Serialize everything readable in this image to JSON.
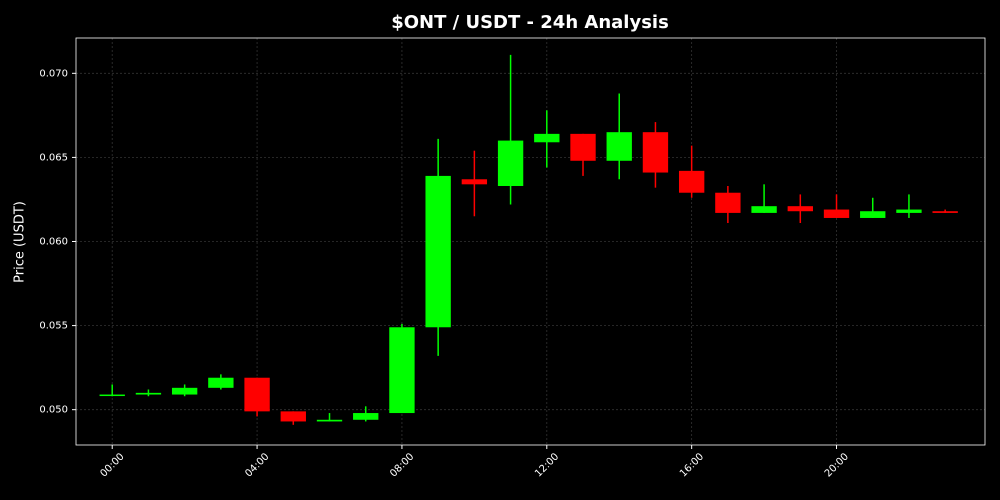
{
  "chart_data": {
    "type": "candlestick",
    "title": "$ONT / USDT - 24h Analysis",
    "y_label": "Price (USDT)",
    "categories": [
      "00:00",
      null,
      null,
      null,
      "04:00",
      null,
      null,
      null,
      "08:00",
      null,
      null,
      null,
      "12:00",
      null,
      null,
      null,
      "16:00",
      null,
      null,
      null,
      "20:00",
      null,
      null,
      null
    ],
    "open": [
      0.05085,
      0.0509,
      0.0509,
      0.0513,
      0.0519,
      0.0499,
      0.0493,
      0.0494,
      0.0498,
      0.0549,
      0.0637,
      0.0633,
      0.0659,
      0.0664,
      0.0648,
      0.0665,
      0.0642,
      0.0629,
      0.0617,
      0.0621,
      0.0619,
      0.0614,
      0.0617,
      0.0618
    ],
    "high": [
      0.0515,
      0.0512,
      0.0515,
      0.0521,
      0.0519,
      0.0499,
      0.0498,
      0.0502,
      0.0551,
      0.0661,
      0.0654,
      0.0711,
      0.0678,
      0.0664,
      0.0688,
      0.0671,
      0.0657,
      0.0633,
      0.0634,
      0.0628,
      0.0628,
      0.0626,
      0.0628,
      0.0619
    ],
    "low": [
      0.0508,
      0.0508,
      0.0508,
      0.0512,
      0.0496,
      0.0491,
      0.0493,
      0.0493,
      0.0498,
      0.0532,
      0.0615,
      0.0622,
      0.0644,
      0.0639,
      0.0637,
      0.0632,
      0.0626,
      0.0611,
      0.0617,
      0.0611,
      0.0614,
      0.0614,
      0.0614,
      0.0617
    ],
    "close": [
      0.0509,
      0.051,
      0.0513,
      0.0519,
      0.0499,
      0.0493,
      0.0494,
      0.0498,
      0.0549,
      0.0639,
      0.0634,
      0.066,
      0.0664,
      0.0648,
      0.0665,
      0.0641,
      0.0629,
      0.0617,
      0.0621,
      0.0618,
      0.0614,
      0.0618,
      0.0619,
      0.0617
    ],
    "up_color": "#00ff00",
    "down_color": "#ff0000",
    "ylim": [
      0.0479,
      0.0721
    ],
    "yticks": [
      {
        "value": 0.05,
        "label": "0.050"
      },
      {
        "value": 0.055,
        "label": "0.055"
      },
      {
        "value": 0.06,
        "label": "0.060"
      },
      {
        "value": 0.065,
        "label": "0.065"
      },
      {
        "value": 0.07,
        "label": "0.070"
      }
    ],
    "grid": true
  }
}
